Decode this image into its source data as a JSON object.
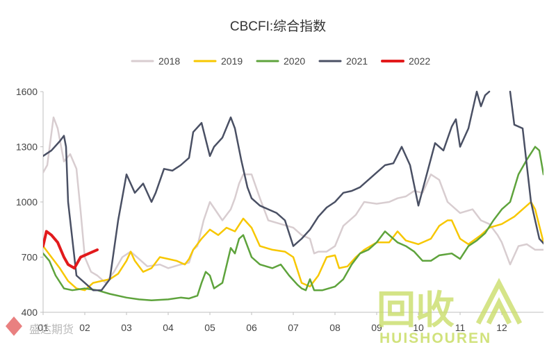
{
  "chart_data": {
    "type": "line",
    "title": "CBCFI:综合指数",
    "xlabel": "",
    "ylabel": "",
    "ylim": [
      400,
      1600
    ],
    "yticks": [
      400,
      700,
      1000,
      1300,
      1600
    ],
    "xlim": [
      1,
      13
    ],
    "xticks": [
      {
        "label": "01",
        "x": 1
      },
      {
        "label": "02",
        "x": 2
      },
      {
        "label": "03",
        "x": 3
      },
      {
        "label": "04",
        "x": 4
      },
      {
        "label": "05",
        "x": 5
      },
      {
        "label": "06",
        "x": 6
      },
      {
        "label": "07",
        "x": 7
      },
      {
        "label": "08",
        "x": 8
      },
      {
        "label": "09",
        "x": 9
      },
      {
        "label": "10",
        "x": 10
      },
      {
        "label": "11",
        "x": 11
      },
      {
        "label": "12",
        "x": 12
      }
    ],
    "grid": false,
    "legend_position": "top",
    "series": [
      {
        "name": "2018",
        "color": "#d8cdd0",
        "width": 2.5,
        "points": [
          [
            1.0,
            1160
          ],
          [
            1.1,
            1200
          ],
          [
            1.25,
            1460
          ],
          [
            1.35,
            1400
          ],
          [
            1.5,
            1220
          ],
          [
            1.65,
            1260
          ],
          [
            1.8,
            1180
          ],
          [
            1.9,
            950
          ],
          [
            2.0,
            700
          ],
          [
            2.15,
            620
          ],
          [
            2.3,
            600
          ],
          [
            2.5,
            560
          ],
          [
            2.7,
            620
          ],
          [
            2.9,
            700
          ],
          [
            3.1,
            730
          ],
          [
            3.3,
            690
          ],
          [
            3.5,
            650
          ],
          [
            3.8,
            660
          ],
          [
            4.0,
            640
          ],
          [
            4.3,
            660
          ],
          [
            4.5,
            670
          ],
          [
            4.6,
            740
          ],
          [
            4.7,
            760
          ],
          [
            4.85,
            900
          ],
          [
            5.0,
            1000
          ],
          [
            5.3,
            900
          ],
          [
            5.5,
            960
          ],
          [
            5.6,
            1020
          ],
          [
            5.7,
            1100
          ],
          [
            5.8,
            1150
          ],
          [
            6.0,
            1150
          ],
          [
            6.2,
            1020
          ],
          [
            6.4,
            900
          ],
          [
            6.7,
            880
          ],
          [
            7.0,
            860
          ],
          [
            7.2,
            820
          ],
          [
            7.4,
            800
          ],
          [
            7.5,
            720
          ],
          [
            7.6,
            730
          ],
          [
            7.8,
            730
          ],
          [
            8.0,
            760
          ],
          [
            8.2,
            870
          ],
          [
            8.5,
            930
          ],
          [
            8.7,
            1000
          ],
          [
            9.0,
            990
          ],
          [
            9.3,
            1000
          ],
          [
            9.5,
            1020
          ],
          [
            9.7,
            1030
          ],
          [
            9.9,
            1060
          ],
          [
            10.1,
            1050
          ],
          [
            10.3,
            1150
          ],
          [
            10.5,
            1120
          ],
          [
            10.7,
            1000
          ],
          [
            11.0,
            940
          ],
          [
            11.3,
            960
          ],
          [
            11.5,
            900
          ],
          [
            11.7,
            880
          ],
          [
            11.9,
            820
          ],
          [
            12.0,
            780
          ],
          [
            12.2,
            660
          ],
          [
            12.4,
            760
          ],
          [
            12.6,
            770
          ],
          [
            12.8,
            740
          ],
          [
            13.0,
            740
          ]
        ]
      },
      {
        "name": "2019",
        "color": "#f7c700",
        "width": 2.5,
        "points": [
          [
            1.0,
            760
          ],
          [
            1.2,
            700
          ],
          [
            1.4,
            640
          ],
          [
            1.6,
            570
          ],
          [
            1.8,
            530
          ],
          [
            2.0,
            520
          ],
          [
            2.2,
            560
          ],
          [
            2.4,
            570
          ],
          [
            2.6,
            580
          ],
          [
            2.8,
            610
          ],
          [
            3.0,
            680
          ],
          [
            3.1,
            730
          ],
          [
            3.2,
            680
          ],
          [
            3.4,
            620
          ],
          [
            3.6,
            640
          ],
          [
            3.8,
            700
          ],
          [
            4.0,
            690
          ],
          [
            4.2,
            680
          ],
          [
            4.4,
            660
          ],
          [
            4.5,
            690
          ],
          [
            4.6,
            740
          ],
          [
            4.8,
            800
          ],
          [
            5.0,
            850
          ],
          [
            5.2,
            820
          ],
          [
            5.4,
            860
          ],
          [
            5.6,
            840
          ],
          [
            5.8,
            910
          ],
          [
            6.0,
            860
          ],
          [
            6.2,
            760
          ],
          [
            6.5,
            740
          ],
          [
            6.8,
            730
          ],
          [
            7.0,
            700
          ],
          [
            7.2,
            560
          ],
          [
            7.4,
            540
          ],
          [
            7.6,
            600
          ],
          [
            7.8,
            700
          ],
          [
            8.0,
            710
          ],
          [
            8.1,
            640
          ],
          [
            8.3,
            650
          ],
          [
            8.5,
            700
          ],
          [
            8.7,
            740
          ],
          [
            9.0,
            780
          ],
          [
            9.3,
            780
          ],
          [
            9.5,
            840
          ],
          [
            9.7,
            790
          ],
          [
            10.0,
            770
          ],
          [
            10.3,
            800
          ],
          [
            10.5,
            870
          ],
          [
            10.7,
            900
          ],
          [
            10.8,
            900
          ],
          [
            11.0,
            800
          ],
          [
            11.2,
            770
          ],
          [
            11.5,
            820
          ],
          [
            11.7,
            860
          ],
          [
            12.0,
            880
          ],
          [
            12.3,
            920
          ],
          [
            12.5,
            960
          ],
          [
            12.7,
            1000
          ],
          [
            12.8,
            960
          ],
          [
            13.0,
            780
          ]
        ]
      },
      {
        "name": "2020",
        "color": "#5ea33c",
        "width": 2.5,
        "points": [
          [
            1.0,
            720
          ],
          [
            1.15,
            680
          ],
          [
            1.3,
            600
          ],
          [
            1.5,
            530
          ],
          [
            1.7,
            520
          ],
          [
            2.0,
            530
          ],
          [
            2.3,
            520
          ],
          [
            2.6,
            500
          ],
          [
            3.0,
            480
          ],
          [
            3.3,
            470
          ],
          [
            3.6,
            465
          ],
          [
            4.0,
            470
          ],
          [
            4.3,
            480
          ],
          [
            4.5,
            475
          ],
          [
            4.7,
            490
          ],
          [
            4.8,
            560
          ],
          [
            4.9,
            620
          ],
          [
            5.0,
            600
          ],
          [
            5.1,
            530
          ],
          [
            5.3,
            560
          ],
          [
            5.5,
            750
          ],
          [
            5.6,
            720
          ],
          [
            5.7,
            800
          ],
          [
            5.8,
            820
          ],
          [
            6.0,
            700
          ],
          [
            6.2,
            660
          ],
          [
            6.5,
            640
          ],
          [
            6.7,
            660
          ],
          [
            6.9,
            600
          ],
          [
            7.1,
            550
          ],
          [
            7.2,
            530
          ],
          [
            7.3,
            520
          ],
          [
            7.4,
            580
          ],
          [
            7.5,
            520
          ],
          [
            7.7,
            520
          ],
          [
            8.0,
            540
          ],
          [
            8.2,
            580
          ],
          [
            8.4,
            660
          ],
          [
            8.6,
            720
          ],
          [
            8.8,
            740
          ],
          [
            9.0,
            780
          ],
          [
            9.2,
            840
          ],
          [
            9.5,
            780
          ],
          [
            9.7,
            760
          ],
          [
            9.9,
            730
          ],
          [
            10.1,
            680
          ],
          [
            10.3,
            680
          ],
          [
            10.5,
            710
          ],
          [
            10.8,
            720
          ],
          [
            11.0,
            690
          ],
          [
            11.2,
            760
          ],
          [
            11.4,
            790
          ],
          [
            11.6,
            830
          ],
          [
            11.8,
            900
          ],
          [
            12.0,
            960
          ],
          [
            12.2,
            1000
          ],
          [
            12.4,
            1150
          ],
          [
            12.6,
            1230
          ],
          [
            12.8,
            1300
          ],
          [
            12.9,
            1280
          ],
          [
            13.0,
            1150
          ],
          [
            13.1,
            1200
          ]
        ]
      },
      {
        "name": "2021",
        "color": "#4a5064",
        "width": 2.5,
        "points": [
          [
            1.0,
            1250
          ],
          [
            1.2,
            1280
          ],
          [
            1.4,
            1330
          ],
          [
            1.5,
            1360
          ],
          [
            1.55,
            1300
          ],
          [
            1.6,
            1000
          ],
          [
            1.7,
            800
          ],
          [
            1.8,
            600
          ],
          [
            2.0,
            560
          ],
          [
            2.2,
            520
          ],
          [
            2.4,
            520
          ],
          [
            2.6,
            580
          ],
          [
            2.8,
            900
          ],
          [
            3.0,
            1150
          ],
          [
            3.1,
            1100
          ],
          [
            3.2,
            1050
          ],
          [
            3.4,
            1100
          ],
          [
            3.6,
            1000
          ],
          [
            3.7,
            1050
          ],
          [
            3.9,
            1180
          ],
          [
            4.1,
            1170
          ],
          [
            4.3,
            1200
          ],
          [
            4.5,
            1240
          ],
          [
            4.6,
            1380
          ],
          [
            4.8,
            1430
          ],
          [
            5.0,
            1250
          ],
          [
            5.1,
            1300
          ],
          [
            5.3,
            1350
          ],
          [
            5.5,
            1460
          ],
          [
            5.6,
            1400
          ],
          [
            5.75,
            1230
          ],
          [
            5.9,
            1080
          ],
          [
            6.0,
            1020
          ],
          [
            6.2,
            980
          ],
          [
            6.4,
            960
          ],
          [
            6.6,
            940
          ],
          [
            6.8,
            900
          ],
          [
            7.0,
            760
          ],
          [
            7.2,
            800
          ],
          [
            7.4,
            850
          ],
          [
            7.6,
            920
          ],
          [
            7.8,
            970
          ],
          [
            8.0,
            1000
          ],
          [
            8.2,
            1050
          ],
          [
            8.4,
            1060
          ],
          [
            8.6,
            1080
          ],
          [
            8.8,
            1120
          ],
          [
            9.0,
            1160
          ],
          [
            9.2,
            1200
          ],
          [
            9.4,
            1210
          ],
          [
            9.6,
            1300
          ],
          [
            9.8,
            1200
          ],
          [
            10.0,
            980
          ],
          [
            10.2,
            1150
          ],
          [
            10.4,
            1320
          ],
          [
            10.6,
            1280
          ],
          [
            10.8,
            1410
          ],
          [
            10.9,
            1450
          ],
          [
            11.0,
            1300
          ],
          [
            11.2,
            1400
          ],
          [
            11.4,
            1600
          ],
          [
            11.5,
            1520
          ],
          [
            11.6,
            1580
          ],
          [
            11.7,
            1600
          ],
          [
            11.75,
            null
          ],
          [
            12.2,
            1600
          ],
          [
            12.3,
            1420
          ],
          [
            12.5,
            1400
          ],
          [
            12.7,
            1000
          ],
          [
            12.9,
            800
          ],
          [
            13.1,
            750
          ]
        ]
      },
      {
        "name": "2022",
        "color": "#e21a1c",
        "width": 4,
        "points": [
          [
            1.0,
            760
          ],
          [
            1.08,
            840
          ],
          [
            1.2,
            820
          ],
          [
            1.35,
            780
          ],
          [
            1.5,
            700
          ],
          [
            1.6,
            660
          ],
          [
            1.75,
            640
          ],
          [
            1.9,
            700
          ],
          [
            2.1,
            720
          ],
          [
            2.3,
            740
          ]
        ]
      }
    ]
  },
  "watermarks": {
    "bottom_left": "盛达期货",
    "bottom_right_cn": "回收",
    "bottom_right_en": "HUISHOUREN"
  }
}
